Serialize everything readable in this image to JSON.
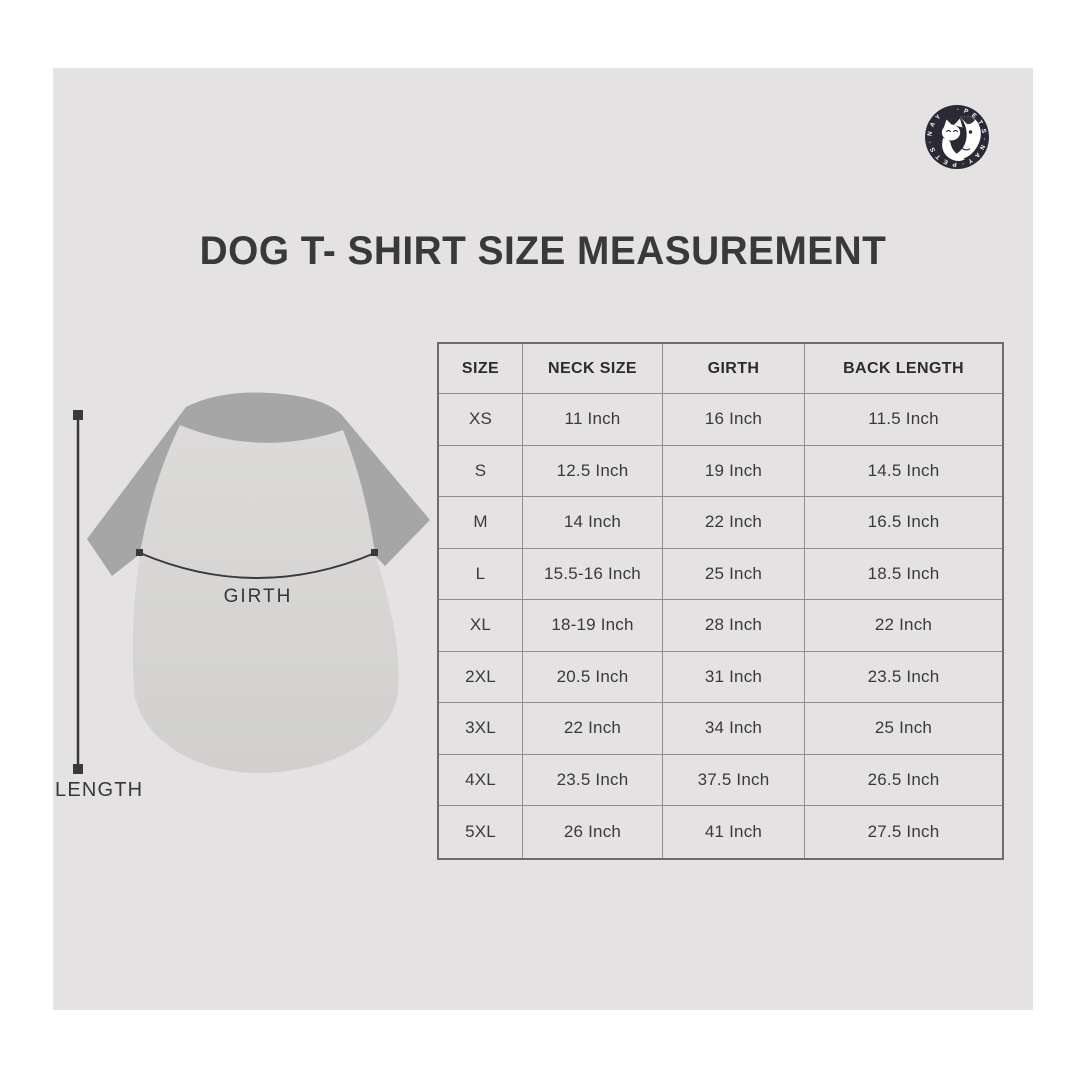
{
  "title": "DOG T- SHIRT SIZE MEASUREMENT",
  "logo": {
    "ring_text": "· P E T S · N A Y · P E T S · N A Y",
    "badge_color": "#2b2936"
  },
  "diagram": {
    "girth_label": "GIRTH",
    "length_label": "LENGTH"
  },
  "chart_data": {
    "type": "table",
    "title": "DOG T- SHIRT SIZE MEASUREMENT",
    "columns": [
      "SIZE",
      "NECK SIZE",
      "GIRTH",
      "BACK LENGTH"
    ],
    "rows": [
      [
        "XS",
        "11 Inch",
        "16 Inch",
        "11.5 Inch"
      ],
      [
        "S",
        "12.5 Inch",
        "19 Inch",
        "14.5 Inch"
      ],
      [
        "M",
        "14 Inch",
        "22 Inch",
        "16.5 Inch"
      ],
      [
        "L",
        "15.5-16 Inch",
        "25 Inch",
        "18.5 Inch"
      ],
      [
        "XL",
        "18-19 Inch",
        "28 Inch",
        "22 Inch"
      ],
      [
        "2XL",
        "20.5 Inch",
        "31 Inch",
        "23.5 Inch"
      ],
      [
        "3XL",
        "22 Inch",
        "34 Inch",
        "25 Inch"
      ],
      [
        "4XL",
        "23.5 Inch",
        "37.5 Inch",
        "26.5 Inch"
      ],
      [
        "5XL",
        "26 Inch",
        "41 Inch",
        "27.5 Inch"
      ]
    ]
  },
  "colors": {
    "page_bg": "#ffffff",
    "panel_bg": "#e4e2e2",
    "sleeve": "#a7a6a6",
    "body_top": "#dcdbda",
    "body_bottom": "#d1d0ce",
    "measure_line": "#3a393b",
    "table_border_outer": "#6d6b6b",
    "table_border_inner": "#8f8d8d",
    "text": "#3b3a3a"
  }
}
